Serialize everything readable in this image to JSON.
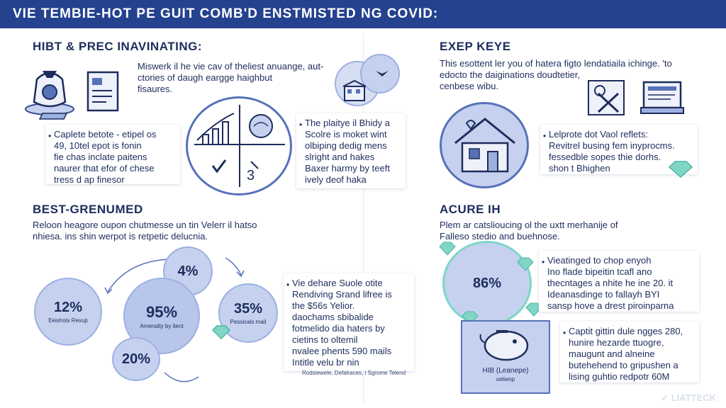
{
  "banner": {
    "title": "VIE TEMBIE-HOT PE GUIT COMB'D ENSTMISTED NG COVID:"
  },
  "tl": {
    "heading": "HIBT & PREC INAVINATING:",
    "intro": [
      "Miswerk il he vie cav of theliest anuange, aut-",
      "ctories of daugh eargge haighbut",
      "fisaures."
    ],
    "card_a": [
      "Caplete betote - etipel os",
      "49, 10tel epot is fonin",
      "fie chas inclate paitens",
      "naurer that efor of chese",
      "tress d ap finesor"
    ],
    "card_b": [
      "The plaitye il Bhidy a",
      "Scolre is moket wint",
      "olbiping dedig mens",
      "slright and hakes",
      "Baxer harmy by teeft",
      "ively deof haka"
    ]
  },
  "tr": {
    "heading": "EXEP KEYE",
    "intro": [
      "This esottent ler you of hatera figto lendatiaila ichinge. 'to",
      "edocto the daiginations doudtetier,",
      "cenbese wibu."
    ],
    "card": [
      "Lelprote dot Vaol reflets:",
      "Revitrel busing fem inyprocms.",
      "fessedble sopes thie dorhs.",
      "shon t Bhighen"
    ]
  },
  "bl": {
    "heading": "BEST-GRENUMED",
    "intro": [
      "Reloon heagore oupon chutmesse un tin Velerr il hatso",
      "nhiesa. ins shin werpot is retpetic delucnia."
    ],
    "bubbles": {
      "b1": {
        "value": "12%",
        "caption": "Eeishols Revup"
      },
      "b2": {
        "value": "4%",
        "caption": ""
      },
      "b3": {
        "value": "95%",
        "caption": "Amenalty by itent"
      },
      "b4": {
        "value": "35%",
        "caption": "Pessicals mail"
      },
      "b5": {
        "value": "20%",
        "caption": ""
      }
    },
    "card": [
      "Vie dehare Suole otite",
      "Rendiving Srand lifree is",
      "the $56s Yelior.",
      "daochams sbibalide",
      "fotmelido dia haters by",
      "cietins to oltemil",
      "nvalee phents 590 mails",
      "Intitle velu br nin"
    ],
    "footnote": "Rodsiewele, Defalraces, i Sgrome Telend"
  },
  "br": {
    "heading": "ACURE IH",
    "intro": [
      "Plem ar catslioucing ol the uxtt merhanije of",
      "Falleso stedio and buehnose."
    ],
    "circle": {
      "value": "86%"
    },
    "card_a": [
      "Vieatinged to chop enyoh",
      "Ino flade bipeitin tcafl ano",
      "thecntages a nhite he ine 20. it",
      "Ideanasdinge to fallayh BYI",
      "sansp hove a drest piroinparna"
    ],
    "box_label": [
      "HIB (Leanepe)",
      "oetienp"
    ],
    "card_b": [
      "Captit gittin dule ngges 280,",
      "hunire hezarde ttuogre,",
      "maugunt and alneine",
      "butehehend to gripushen a",
      "lising guhtio redpotr 60M"
    ],
    "brand": "LIATTECK"
  },
  "colors": {
    "banner": "#25428f",
    "accent": "#c5d1ef",
    "ink": "#1d2d5c",
    "teal": "#7fd6c7"
  }
}
